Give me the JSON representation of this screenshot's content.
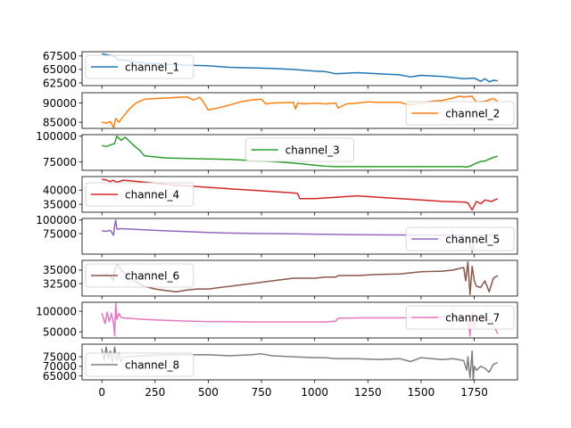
{
  "chart_data": [
    {
      "type": "line",
      "series": [
        {
          "name": "channel_1",
          "color": "#1f77b4",
          "x": [
            0,
            30,
            60,
            80,
            100,
            150,
            200,
            300,
            400,
            500,
            600,
            700,
            800,
            900,
            1000,
            1050,
            1100,
            1200,
            1300,
            1400,
            1450,
            1500,
            1600,
            1650,
            1700,
            1750,
            1780,
            1800,
            1820,
            1840,
            1860
          ],
          "y": [
            67900,
            67700,
            67400,
            66700,
            66800,
            66400,
            66200,
            66000,
            65800,
            65700,
            65400,
            65300,
            65200,
            65000,
            64700,
            64600,
            64200,
            64400,
            64200,
            64000,
            63600,
            63900,
            63700,
            63500,
            63300,
            63400,
            62800,
            63300,
            62700,
            63000,
            62900
          ]
        }
      ],
      "ylim": [
        62000,
        68300
      ],
      "yticks": [
        {
          "v": 62500,
          "label": "62500"
        },
        {
          "v": 65000,
          "label": "65000"
        },
        {
          "v": 67500,
          "label": "67500"
        }
      ],
      "legend": "upper-left"
    },
    {
      "type": "line",
      "series": [
        {
          "name": "channel_2",
          "color": "#ff7f0e",
          "x": [
            0,
            20,
            40,
            55,
            65,
            80,
            100,
            130,
            160,
            200,
            250,
            300,
            350,
            400,
            430,
            460,
            480,
            500,
            550,
            600,
            650,
            700,
            750,
            770,
            800,
            900,
            910,
            920,
            950,
            1000,
            1050,
            1100,
            1110,
            1150,
            1200,
            1250,
            1300,
            1400,
            1450,
            1500,
            1550,
            1600,
            1650,
            1680,
            1700,
            1740,
            1760,
            1800,
            1840,
            1860
          ],
          "y": [
            85000,
            84800,
            85200,
            83600,
            86000,
            85000,
            86500,
            88500,
            90000,
            91000,
            91200,
            91300,
            91500,
            91600,
            90800,
            91500,
            90000,
            88200,
            88800,
            89500,
            90300,
            90800,
            91000,
            89800,
            90000,
            90200,
            88500,
            90000,
            89800,
            90000,
            89800,
            90000,
            88700,
            89800,
            90000,
            90300,
            90200,
            90200,
            89500,
            90000,
            90500,
            90700,
            91300,
            91800,
            91600,
            91800,
            90200,
            90500,
            91200,
            90500
          ]
        }
      ],
      "ylim": [
        83400,
        92700
      ],
      "yticks": [
        {
          "v": 85000,
          "label": "85000"
        },
        {
          "v": 90000,
          "label": "90000"
        }
      ],
      "legend": "lower-right"
    },
    {
      "type": "line",
      "series": [
        {
          "name": "channel_3",
          "color": "#2ca02c",
          "x": [
            0,
            20,
            40,
            60,
            70,
            90,
            110,
            130,
            150,
            180,
            200,
            300,
            400,
            500,
            600,
            700,
            800,
            900,
            1000,
            1050,
            1100,
            1200,
            1400,
            1600,
            1700,
            1710,
            1730,
            1750,
            1780,
            1800,
            1840,
            1860
          ],
          "y": [
            91000,
            90000,
            91500,
            93000,
            100000,
            96000,
            99000,
            95000,
            91000,
            86000,
            81000,
            79000,
            78500,
            78000,
            77500,
            76500,
            75500,
            74000,
            72000,
            71000,
            70500,
            70500,
            70500,
            70500,
            70500,
            70000,
            71000,
            73000,
            75500,
            76000,
            79500,
            80500
          ]
        }
      ],
      "ylim": [
        67000,
        101500
      ],
      "yticks": [
        {
          "v": 75000,
          "label": "75000"
        },
        {
          "v": 100000,
          "label": "100000"
        }
      ],
      "legend": "top-center"
    },
    {
      "type": "line",
      "series": [
        {
          "name": "channel_4",
          "color": "#d62728",
          "x": [
            0,
            20,
            40,
            50,
            70,
            100,
            200,
            300,
            400,
            500,
            600,
            700,
            800,
            900,
            920,
            930,
            1000,
            1100,
            1200,
            1300,
            1400,
            1500,
            1600,
            1700,
            1720,
            1740,
            1750,
            1760,
            1780,
            1800,
            1830,
            1860
          ],
          "y": [
            43800,
            43600,
            43000,
            43500,
            42800,
            43500,
            42800,
            42000,
            41500,
            41000,
            40500,
            40000,
            39500,
            39000,
            38800,
            37000,
            37000,
            37500,
            38000,
            37500,
            37000,
            36500,
            36000,
            35800,
            35500,
            33000,
            34500,
            36000,
            35200,
            36500,
            36000,
            37000
          ]
        }
      ],
      "ylim": [
        32200,
        44800
      ],
      "yticks": [
        {
          "v": 35000,
          "label": "35000"
        },
        {
          "v": 40000,
          "label": "40000"
        }
      ],
      "legend": "middle-left"
    },
    {
      "type": "line",
      "series": [
        {
          "name": "channel_5",
          "color": "#9467bd",
          "x": [
            0,
            20,
            40,
            55,
            60,
            65,
            70,
            80,
            90,
            100,
            200,
            300,
            400,
            500,
            600,
            700,
            800,
            900,
            1000,
            1100,
            1200,
            1400,
            1600,
            1700,
            1720,
            1730,
            1740,
            1750,
            1760,
            1780,
            1800,
            1830,
            1860
          ],
          "y": [
            80000,
            79000,
            81000,
            72000,
            90000,
            100000,
            84000,
            83000,
            84000,
            84000,
            82000,
            80000,
            78500,
            77000,
            76000,
            75500,
            75000,
            74500,
            74000,
            73500,
            73000,
            72500,
            72000,
            71500,
            68000,
            55000,
            40000,
            68000,
            71000,
            71500,
            72000,
            72000,
            72500
          ]
        }
      ],
      "ylim": [
        37000,
        103000
      ],
      "yticks": [
        {
          "v": 75000,
          "label": "75000"
        },
        {
          "v": 100000,
          "label": "100000"
        }
      ],
      "legend": "lower-right"
    },
    {
      "type": "line",
      "series": [
        {
          "name": "channel_6",
          "color": "#8c564b",
          "x": [
            0,
            20,
            40,
            55,
            60,
            70,
            80,
            90,
            120,
            150,
            200,
            250,
            300,
            350,
            400,
            450,
            500,
            600,
            700,
            800,
            900,
            1000,
            1050,
            1100,
            1110,
            1200,
            1300,
            1400,
            1500,
            1600,
            1650,
            1700,
            1710,
            1720,
            1730,
            1740,
            1750,
            1760,
            1780,
            1800,
            1820,
            1840,
            1860
          ],
          "y": [
            34000,
            34200,
            33800,
            33000,
            35000,
            36000,
            35700,
            35000,
            34000,
            33000,
            32000,
            31500,
            31200,
            31000,
            31300,
            31500,
            31500,
            32000,
            32500,
            33000,
            33500,
            33500,
            33700,
            33700,
            34000,
            34000,
            34200,
            34300,
            34700,
            34800,
            35000,
            35500,
            33000,
            36500,
            30500,
            35700,
            33000,
            32000,
            31800,
            33000,
            31000,
            33500,
            34000
          ]
        }
      ],
      "ylim": [
        30200,
        36800
      ],
      "yticks": [
        {
          "v": 32500,
          "label": "32500"
        },
        {
          "v": 35000,
          "label": "35000"
        }
      ],
      "legend": "upper-left"
    },
    {
      "type": "line",
      "series": [
        {
          "name": "channel_7",
          "color": "#e377c2",
          "x": [
            0,
            15,
            25,
            35,
            45,
            55,
            60,
            65,
            70,
            80,
            90,
            100,
            200,
            300,
            400,
            500,
            600,
            700,
            800,
            900,
            1000,
            1050,
            1100,
            1110,
            1200,
            1300,
            1400,
            1500,
            1600,
            1700,
            1720,
            1730,
            1740,
            1750,
            1760,
            1780,
            1800,
            1830,
            1860
          ],
          "y": [
            95000,
            70000,
            98000,
            75000,
            95000,
            70000,
            40000,
            120000,
            80000,
            95000,
            85000,
            84000,
            80000,
            78000,
            76000,
            75000,
            75000,
            74000,
            74000,
            74000,
            74000,
            74000,
            76000,
            83000,
            84000,
            84000,
            84000,
            85000,
            85500,
            84000,
            80000,
            40000,
            100000,
            60000,
            80000,
            80000,
            80000,
            78000,
            45000
          ]
        }
      ],
      "ylim": [
        35000,
        122000
      ],
      "yticks": [
        {
          "v": 50000,
          "label": "50000"
        },
        {
          "v": 100000,
          "label": "100000"
        }
      ],
      "legend": "upper-right"
    },
    {
      "type": "line",
      "series": [
        {
          "name": "channel_8",
          "color": "#7f7f7f",
          "x": [
            0,
            10,
            20,
            30,
            40,
            50,
            60,
            70,
            80,
            90,
            100,
            200,
            300,
            400,
            500,
            600,
            700,
            750,
            800,
            900,
            1000,
            1050,
            1100,
            1200,
            1300,
            1400,
            1450,
            1500,
            1550,
            1600,
            1650,
            1700,
            1715,
            1720,
            1730,
            1740,
            1745,
            1750,
            1760,
            1780,
            1800,
            1820,
            1840,
            1860
          ],
          "y": [
            79000,
            73000,
            80000,
            74000,
            78000,
            72000,
            80000,
            73000,
            77000,
            72000,
            75000,
            75500,
            76000,
            76000,
            76000,
            75500,
            76000,
            76500,
            75500,
            75000,
            74500,
            74500,
            74000,
            74000,
            73500,
            74000,
            72500,
            74500,
            74000,
            73500,
            74000,
            73000,
            68000,
            75000,
            64000,
            78000,
            63000,
            70000,
            68000,
            70000,
            69000,
            67000,
            71000,
            72000
          ]
        }
      ],
      "ylim": [
        63000,
        81500
      ],
      "yticks": [
        {
          "v": 65000,
          "label": "65000"
        },
        {
          "v": 70000,
          "label": "70000"
        },
        {
          "v": 75000,
          "label": "75000"
        }
      ],
      "legend": "lower-left"
    }
  ],
  "x_axis": {
    "xlim": [
      -93,
      1953
    ],
    "ticks": [
      {
        "v": 0,
        "label": "0"
      },
      {
        "v": 250,
        "label": "250"
      },
      {
        "v": 500,
        "label": "500"
      },
      {
        "v": 750,
        "label": "750"
      },
      {
        "v": 1000,
        "label": "1000"
      },
      {
        "v": 1250,
        "label": "1250"
      },
      {
        "v": 1500,
        "label": "1500"
      },
      {
        "v": 1750,
        "label": "1750"
      }
    ]
  }
}
